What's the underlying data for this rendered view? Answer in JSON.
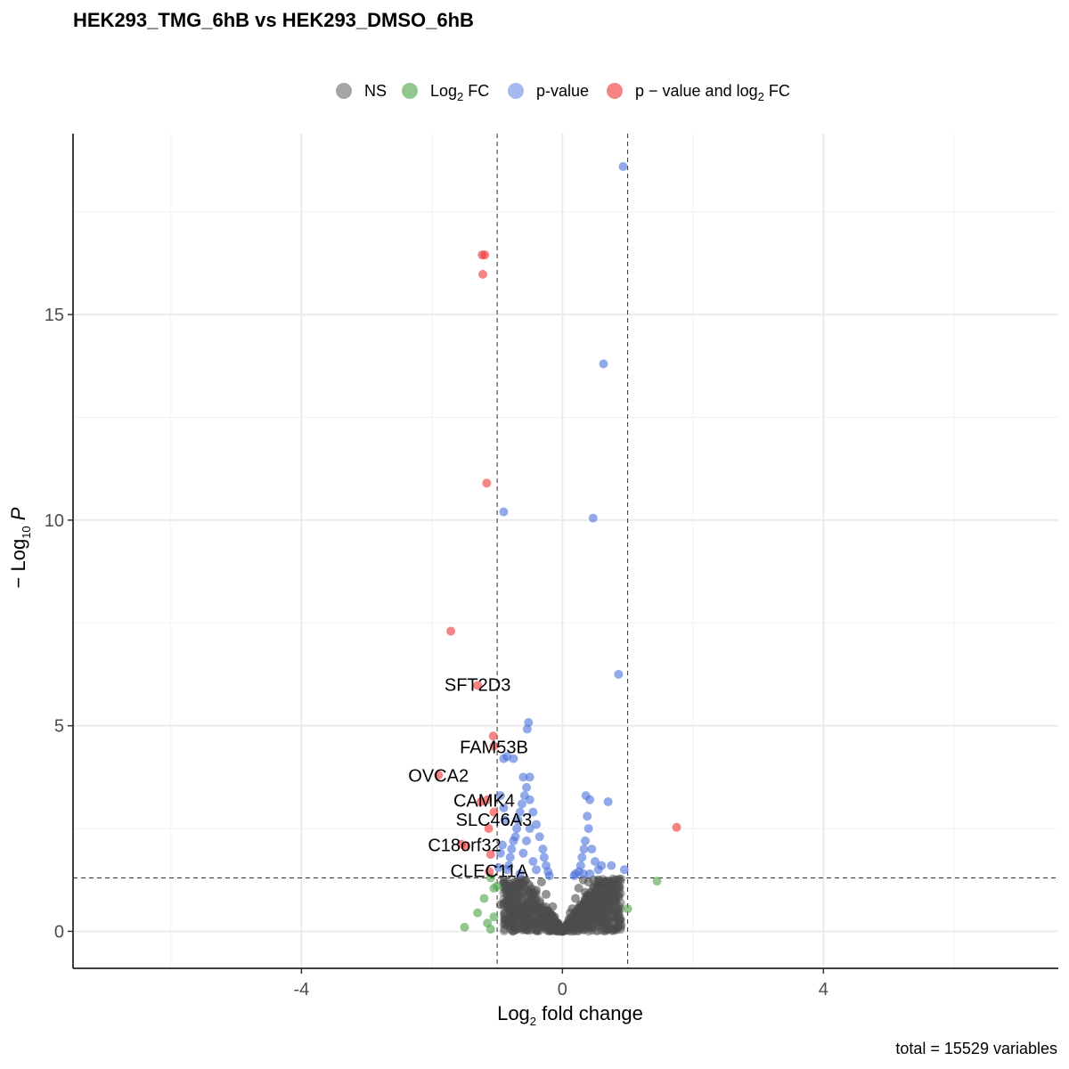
{
  "chart_data": {
    "type": "scatter",
    "title": "HEK293_TMG_6hB vs HEK293_DMSO_6hB",
    "xlabel": {
      "main": "Log",
      "sub": "2",
      "rest": " fold change"
    },
    "ylabel": {
      "prefix": "− Log",
      "sub": "10",
      "rest": " P"
    },
    "caption": "total = 15529 variables",
    "xlim": [
      -7.5,
      7.6
    ],
    "ylim": [
      -0.9,
      19.4
    ],
    "x_ticks": [
      -4,
      0,
      4
    ],
    "x_tick_labels": [
      "-4",
      "0",
      "4"
    ],
    "y_ticks": [
      0,
      5,
      10,
      15
    ],
    "y_tick_labels": [
      "0",
      "5",
      "10",
      "15"
    ],
    "grid": true,
    "fc_cutoff": 1,
    "p_cutoff": 1.3,
    "legend_position": "top",
    "legend": [
      {
        "key": "NS",
        "label": "NS",
        "color": "#7f7f7f"
      },
      {
        "key": "FC",
        "label": "Log",
        "sub": "2",
        "after": " FC",
        "color": "#4aa346"
      },
      {
        "key": "P",
        "label": "p-value",
        "color": "#5a7fe0"
      },
      {
        "key": "PFC",
        "label": "p − value and log",
        "sub": "2",
        "after": " FC",
        "color": "#ee3333"
      }
    ],
    "series": [
      {
        "name": "NS",
        "color": "#4d4d4d",
        "points": [
          [
            -0.9,
            1.2
          ],
          [
            -0.85,
            0.9
          ],
          [
            -0.8,
            0.7
          ],
          [
            -0.75,
            1.1
          ],
          [
            -0.7,
            0.5
          ],
          [
            -0.65,
            0.85
          ],
          [
            -0.6,
            1.15
          ],
          [
            -0.55,
            0.6
          ],
          [
            -0.5,
            0.95
          ],
          [
            -0.45,
            0.4
          ],
          [
            -0.4,
            1.0
          ],
          [
            -0.35,
            0.7
          ],
          [
            -0.3,
            0.35
          ],
          [
            -0.25,
            0.9
          ],
          [
            -0.2,
            0.25
          ],
          [
            -0.15,
            0.6
          ],
          [
            -0.1,
            0.15
          ],
          [
            -0.05,
            0.05
          ],
          [
            0.0,
            0.02
          ],
          [
            0.05,
            0.1
          ],
          [
            0.1,
            0.3
          ],
          [
            0.15,
            0.55
          ],
          [
            0.2,
            0.8
          ],
          [
            0.25,
            1.05
          ],
          [
            0.3,
            0.45
          ],
          [
            0.35,
            0.95
          ],
          [
            0.4,
            1.2
          ],
          [
            0.45,
            0.7
          ],
          [
            0.5,
            0.9
          ],
          [
            0.55,
            1.1
          ],
          [
            0.6,
            0.6
          ],
          [
            0.65,
            0.3
          ],
          [
            0.7,
            1.2
          ],
          [
            0.75,
            0.95
          ],
          [
            0.8,
            0.05
          ],
          [
            0.85,
            0.1
          ],
          [
            0.9,
            0.15
          ],
          [
            -0.88,
            0.45
          ],
          [
            -0.82,
            0.2
          ],
          [
            -0.72,
            0.1
          ],
          [
            -0.62,
            1.25
          ],
          [
            -0.52,
            0.2
          ],
          [
            -0.42,
            0.75
          ],
          [
            -0.32,
            1.2
          ],
          [
            -0.22,
            0.5
          ],
          [
            0.22,
            0.35
          ],
          [
            0.32,
            1.25
          ],
          [
            0.42,
            0.2
          ],
          [
            0.52,
            0.4
          ],
          [
            0.62,
            1.0
          ],
          [
            0.72,
            0.5
          ],
          [
            -0.95,
            0.65
          ],
          [
            -0.78,
            0.35
          ],
          [
            -0.58,
            0.4
          ],
          [
            -0.48,
            0.15
          ],
          [
            -0.38,
            0.55
          ],
          [
            -0.28,
            0.1
          ],
          [
            -0.18,
            0.4
          ],
          [
            -0.12,
            0.35
          ],
          [
            -0.08,
            0.2
          ],
          [
            0.08,
            0.15
          ],
          [
            0.12,
            0.45
          ],
          [
            0.18,
            0.2
          ],
          [
            0.28,
            0.65
          ],
          [
            0.38,
            0.15
          ],
          [
            0.48,
            1.25
          ],
          [
            0.58,
            0.25
          ],
          [
            0.68,
            0.8
          ],
          [
            0.78,
            0.35
          ],
          [
            0.82,
            0.75
          ]
        ]
      },
      {
        "name": "FC",
        "color": "#4aa346",
        "points": [
          [
            -1.5,
            0.1
          ],
          [
            -1.3,
            0.45
          ],
          [
            -1.2,
            0.8
          ],
          [
            -1.15,
            0.2
          ],
          [
            -1.1,
            0.05
          ],
          [
            -1.05,
            1.05
          ],
          [
            -1.0,
            1.1
          ],
          [
            -1.05,
            0.35
          ],
          [
            -1.1,
            1.3
          ],
          [
            1.0,
            0.55
          ],
          [
            1.45,
            1.22
          ]
        ]
      },
      {
        "name": "P",
        "color": "#4a6fdc",
        "points": [
          [
            0.93,
            18.6
          ],
          [
            0.63,
            13.8
          ],
          [
            -0.9,
            10.2
          ],
          [
            0.47,
            10.05
          ],
          [
            0.86,
            6.25
          ],
          [
            -0.52,
            5.08
          ],
          [
            -0.54,
            4.92
          ],
          [
            -0.9,
            4.2
          ],
          [
            -0.85,
            4.25
          ],
          [
            -0.75,
            4.2
          ],
          [
            -0.6,
            3.75
          ],
          [
            -0.5,
            3.75
          ],
          [
            -0.55,
            3.5
          ],
          [
            -0.58,
            3.3
          ],
          [
            -0.62,
            3.1
          ],
          [
            -0.65,
            2.9
          ],
          [
            -0.68,
            2.7
          ],
          [
            -0.7,
            2.5
          ],
          [
            -0.72,
            2.3
          ],
          [
            -0.75,
            2.2
          ],
          [
            -0.78,
            2.0
          ],
          [
            -0.8,
            1.8
          ],
          [
            -0.82,
            1.6
          ],
          [
            -0.85,
            1.5
          ],
          [
            -0.5,
            3.2
          ],
          [
            -0.45,
            2.9
          ],
          [
            -0.4,
            2.6
          ],
          [
            -0.35,
            2.3
          ],
          [
            -0.3,
            2.0
          ],
          [
            -0.28,
            1.8
          ],
          [
            -0.25,
            1.6
          ],
          [
            -0.22,
            1.45
          ],
          [
            -0.5,
            2.5
          ],
          [
            -0.55,
            2.2
          ],
          [
            -0.6,
            1.9
          ],
          [
            -0.45,
            1.7
          ],
          [
            -0.4,
            1.5
          ],
          [
            -0.65,
            1.4
          ],
          [
            0.36,
            3.3
          ],
          [
            0.42,
            3.2
          ],
          [
            0.38,
            2.8
          ],
          [
            0.4,
            2.5
          ],
          [
            0.35,
            2.2
          ],
          [
            0.33,
            2.0
          ],
          [
            0.3,
            1.8
          ],
          [
            0.28,
            1.6
          ],
          [
            0.25,
            1.45
          ],
          [
            0.2,
            1.4
          ],
          [
            0.45,
            2.0
          ],
          [
            0.5,
            1.7
          ],
          [
            0.55,
            1.5
          ],
          [
            0.7,
            3.15
          ],
          [
            0.6,
            1.6
          ],
          [
            0.75,
            1.6
          ],
          [
            0.95,
            1.5
          ],
          [
            0.42,
            1.4
          ],
          [
            0.32,
            1.4
          ],
          [
            -0.95,
            3.3
          ],
          [
            -0.9,
            3.0
          ],
          [
            -0.88,
            2.7
          ],
          [
            -0.92,
            2.1
          ],
          [
            -0.95,
            1.9
          ],
          [
            -0.98,
            1.55
          ],
          [
            -0.2,
            1.35
          ],
          [
            0.18,
            1.35
          ]
        ]
      },
      {
        "name": "PFC",
        "color": "#ee3333",
        "points": [
          [
            -1.23,
            16.45
          ],
          [
            -1.19,
            16.45
          ],
          [
            -1.22,
            15.98
          ],
          [
            -1.16,
            10.9
          ],
          [
            -1.71,
            7.3
          ],
          [
            -1.3,
            5.98
          ],
          [
            -1.06,
            4.75
          ],
          [
            -1.05,
            4.5
          ],
          [
            -1.9,
            3.8
          ],
          [
            -1.25,
            3.15
          ],
          [
            -1.15,
            3.2
          ],
          [
            -1.05,
            2.9
          ],
          [
            -1.13,
            2.5
          ],
          [
            -1.55,
            2.12
          ],
          [
            -1.48,
            2.08
          ],
          [
            -1.1,
            1.87
          ],
          [
            -1.12,
            1.45
          ],
          [
            1.75,
            2.53
          ]
        ]
      }
    ],
    "annotations": [
      {
        "text": "SFT2D3",
        "x": -1.3,
        "y": 6.0
      },
      {
        "text": "FAM53B",
        "x": -1.05,
        "y": 4.48
      },
      {
        "text": "OVCA2",
        "x": -1.9,
        "y": 3.79
      },
      {
        "text": "CAMK4",
        "x": -1.2,
        "y": 3.18
      },
      {
        "text": "SLC46A3",
        "x": -1.05,
        "y": 2.72
      },
      {
        "text": "C18orf32",
        "x": -1.5,
        "y": 2.1
      },
      {
        "text": "CLEC11A",
        "x": -1.12,
        "y": 1.47
      }
    ]
  }
}
